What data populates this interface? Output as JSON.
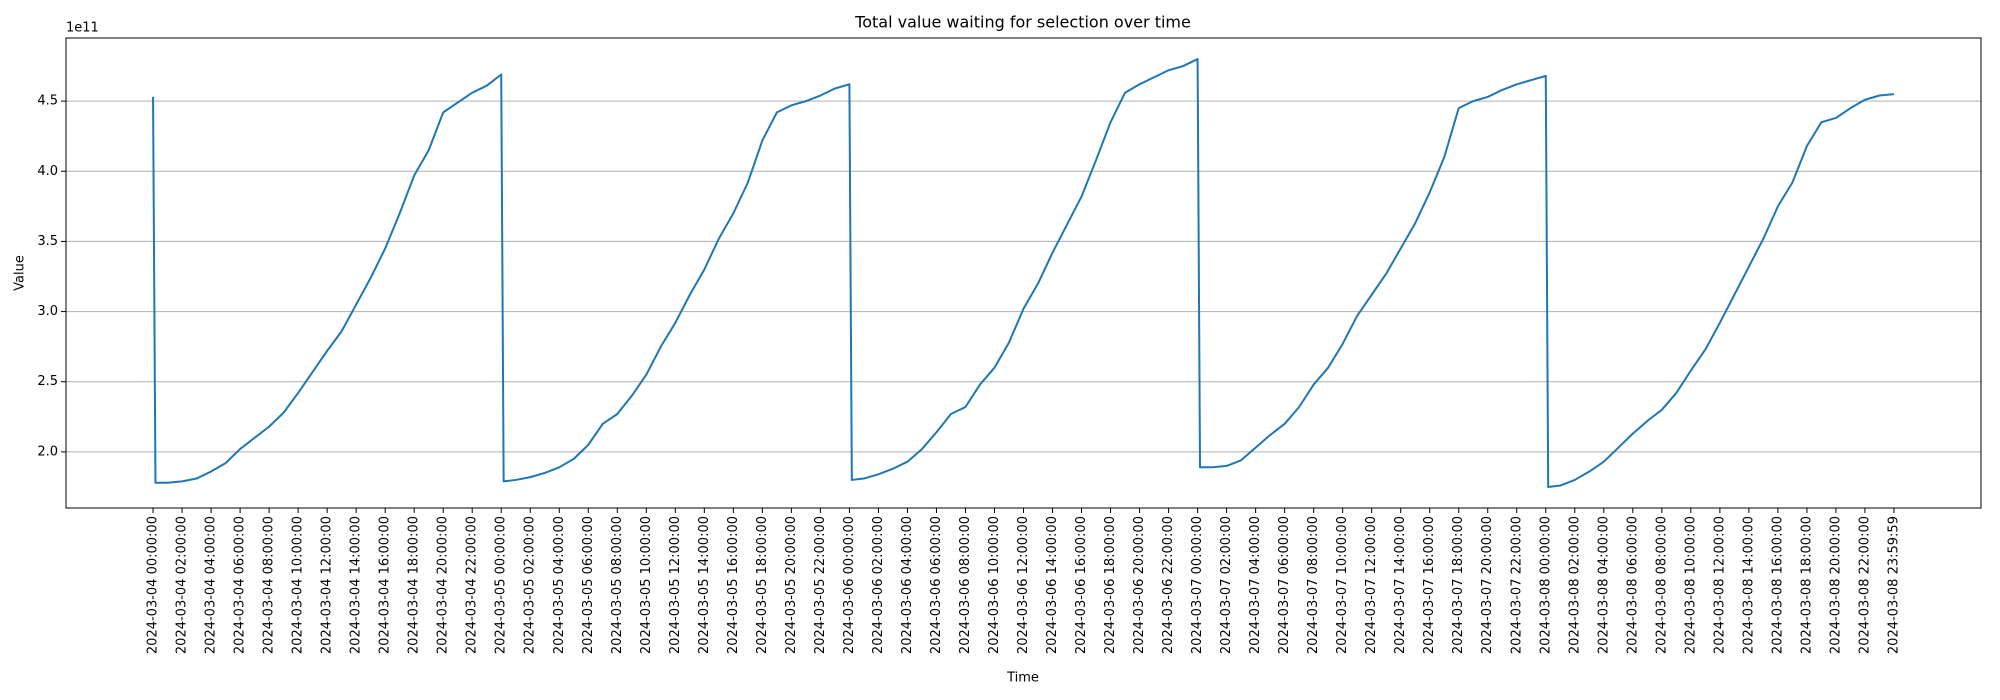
{
  "chart_data": {
    "type": "line",
    "title": "Total value waiting for selection over time",
    "xlabel": "Time",
    "ylabel": "Value",
    "y_offset_label": "1e11",
    "x": [
      "2024-03-04 00:00:00",
      "2024-03-04 00:10:00",
      "2024-03-04 01:00:00",
      "2024-03-04 02:00:00",
      "2024-03-04 03:00:00",
      "2024-03-04 04:00:00",
      "2024-03-04 05:00:00",
      "2024-03-04 06:00:00",
      "2024-03-04 07:00:00",
      "2024-03-04 08:00:00",
      "2024-03-04 09:00:00",
      "2024-03-04 10:00:00",
      "2024-03-04 11:00:00",
      "2024-03-04 12:00:00",
      "2024-03-04 13:00:00",
      "2024-03-04 14:00:00",
      "2024-03-04 15:00:00",
      "2024-03-04 16:00:00",
      "2024-03-04 17:00:00",
      "2024-03-04 18:00:00",
      "2024-03-04 19:00:00",
      "2024-03-04 20:00:00",
      "2024-03-04 21:00:00",
      "2024-03-04 22:00:00",
      "2024-03-04 23:00:00",
      "2024-03-05 00:00:00",
      "2024-03-05 00:10:00",
      "2024-03-05 01:00:00",
      "2024-03-05 02:00:00",
      "2024-03-05 03:00:00",
      "2024-03-05 04:00:00",
      "2024-03-05 05:00:00",
      "2024-03-05 06:00:00",
      "2024-03-05 07:00:00",
      "2024-03-05 08:00:00",
      "2024-03-05 09:00:00",
      "2024-03-05 10:00:00",
      "2024-03-05 11:00:00",
      "2024-03-05 12:00:00",
      "2024-03-05 13:00:00",
      "2024-03-05 14:00:00",
      "2024-03-05 15:00:00",
      "2024-03-05 16:00:00",
      "2024-03-05 17:00:00",
      "2024-03-05 18:00:00",
      "2024-03-05 19:00:00",
      "2024-03-05 20:00:00",
      "2024-03-05 21:00:00",
      "2024-03-05 22:00:00",
      "2024-03-05 23:00:00",
      "2024-03-06 00:00:00",
      "2024-03-06 00:10:00",
      "2024-03-06 01:00:00",
      "2024-03-06 02:00:00",
      "2024-03-06 03:00:00",
      "2024-03-06 04:00:00",
      "2024-03-06 05:00:00",
      "2024-03-06 06:00:00",
      "2024-03-06 07:00:00",
      "2024-03-06 08:00:00",
      "2024-03-06 09:00:00",
      "2024-03-06 10:00:00",
      "2024-03-06 11:00:00",
      "2024-03-06 12:00:00",
      "2024-03-06 13:00:00",
      "2024-03-06 14:00:00",
      "2024-03-06 15:00:00",
      "2024-03-06 16:00:00",
      "2024-03-06 17:00:00",
      "2024-03-06 18:00:00",
      "2024-03-06 19:00:00",
      "2024-03-06 20:00:00",
      "2024-03-06 21:00:00",
      "2024-03-06 22:00:00",
      "2024-03-06 23:00:00",
      "2024-03-07 00:00:00",
      "2024-03-07 00:10:00",
      "2024-03-07 01:00:00",
      "2024-03-07 02:00:00",
      "2024-03-07 03:00:00",
      "2024-03-07 04:00:00",
      "2024-03-07 05:00:00",
      "2024-03-07 06:00:00",
      "2024-03-07 07:00:00",
      "2024-03-07 08:00:00",
      "2024-03-07 09:00:00",
      "2024-03-07 10:00:00",
      "2024-03-07 11:00:00",
      "2024-03-07 12:00:00",
      "2024-03-07 13:00:00",
      "2024-03-07 14:00:00",
      "2024-03-07 15:00:00",
      "2024-03-07 16:00:00",
      "2024-03-07 17:00:00",
      "2024-03-07 18:00:00",
      "2024-03-07 19:00:00",
      "2024-03-07 20:00:00",
      "2024-03-07 21:00:00",
      "2024-03-07 22:00:00",
      "2024-03-07 23:00:00",
      "2024-03-08 00:00:00",
      "2024-03-08 00:10:00",
      "2024-03-08 01:00:00",
      "2024-03-08 02:00:00",
      "2024-03-08 03:00:00",
      "2024-03-08 04:00:00",
      "2024-03-08 05:00:00",
      "2024-03-08 06:00:00",
      "2024-03-08 07:00:00",
      "2024-03-08 08:00:00",
      "2024-03-08 09:00:00",
      "2024-03-08 10:00:00",
      "2024-03-08 11:00:00",
      "2024-03-08 12:00:00",
      "2024-03-08 13:00:00",
      "2024-03-08 14:00:00",
      "2024-03-08 15:00:00",
      "2024-03-08 16:00:00",
      "2024-03-08 17:00:00",
      "2024-03-08 18:00:00",
      "2024-03-08 19:00:00",
      "2024-03-08 20:00:00",
      "2024-03-08 21:00:00",
      "2024-03-08 22:00:00",
      "2024-03-08 23:00:00",
      "2024-03-08 23:59:59"
    ],
    "series": [
      {
        "name": "Total value",
        "color": "#1f77b4",
        "values": [
          4.53,
          1.78,
          1.78,
          1.79,
          1.81,
          1.86,
          1.92,
          2.02,
          2.1,
          2.18,
          2.28,
          2.42,
          2.57,
          2.72,
          2.86,
          3.05,
          3.24,
          3.45,
          3.7,
          3.97,
          4.15,
          4.42,
          4.49,
          4.56,
          4.61,
          4.69,
          1.79,
          1.8,
          1.82,
          1.85,
          1.89,
          1.95,
          2.05,
          2.2,
          2.27,
          2.4,
          2.55,
          2.75,
          2.92,
          3.12,
          3.3,
          3.52,
          3.7,
          3.92,
          4.22,
          4.42,
          4.47,
          4.5,
          4.54,
          4.59,
          4.62,
          1.8,
          1.81,
          1.84,
          1.88,
          1.93,
          2.02,
          2.14,
          2.27,
          2.32,
          2.48,
          2.6,
          2.78,
          3.02,
          3.2,
          3.42,
          3.62,
          3.82,
          4.08,
          4.35,
          4.56,
          4.62,
          4.67,
          4.72,
          4.75,
          4.8,
          1.89,
          1.89,
          1.9,
          1.94,
          2.03,
          2.12,
          2.2,
          2.32,
          2.48,
          2.6,
          2.77,
          2.97,
          3.12,
          3.27,
          3.45,
          3.63,
          3.85,
          4.1,
          4.45,
          4.5,
          4.53,
          4.58,
          4.62,
          4.65,
          4.68,
          1.75,
          1.76,
          1.8,
          1.86,
          1.93,
          2.03,
          2.13,
          2.22,
          2.3,
          2.42,
          2.58,
          2.73,
          2.92,
          3.12,
          3.32,
          3.52,
          3.75,
          3.92,
          4.18,
          4.35,
          4.38,
          4.45,
          4.51,
          4.54,
          4.55
        ]
      }
    ],
    "xlim": [
      "2024-03-03 18:00:00",
      "2024-03-09 06:00:00"
    ],
    "xticks": [
      "2024-03-04 00:00:00",
      "2024-03-04 02:00:00",
      "2024-03-04 04:00:00",
      "2024-03-04 06:00:00",
      "2024-03-04 08:00:00",
      "2024-03-04 10:00:00",
      "2024-03-04 12:00:00",
      "2024-03-04 14:00:00",
      "2024-03-04 16:00:00",
      "2024-03-04 18:00:00",
      "2024-03-04 20:00:00",
      "2024-03-04 22:00:00",
      "2024-03-05 00:00:00",
      "2024-03-05 02:00:00",
      "2024-03-05 04:00:00",
      "2024-03-05 06:00:00",
      "2024-03-05 08:00:00",
      "2024-03-05 10:00:00",
      "2024-03-05 12:00:00",
      "2024-03-05 14:00:00",
      "2024-03-05 16:00:00",
      "2024-03-05 18:00:00",
      "2024-03-05 20:00:00",
      "2024-03-05 22:00:00",
      "2024-03-06 00:00:00",
      "2024-03-06 02:00:00",
      "2024-03-06 04:00:00",
      "2024-03-06 06:00:00",
      "2024-03-06 08:00:00",
      "2024-03-06 10:00:00",
      "2024-03-06 12:00:00",
      "2024-03-06 14:00:00",
      "2024-03-06 16:00:00",
      "2024-03-06 18:00:00",
      "2024-03-06 20:00:00",
      "2024-03-06 22:00:00",
      "2024-03-07 00:00:00",
      "2024-03-07 02:00:00",
      "2024-03-07 04:00:00",
      "2024-03-07 06:00:00",
      "2024-03-07 08:00:00",
      "2024-03-07 10:00:00",
      "2024-03-07 12:00:00",
      "2024-03-07 14:00:00",
      "2024-03-07 16:00:00",
      "2024-03-07 18:00:00",
      "2024-03-07 20:00:00",
      "2024-03-07 22:00:00",
      "2024-03-08 00:00:00",
      "2024-03-08 02:00:00",
      "2024-03-08 04:00:00",
      "2024-03-08 06:00:00",
      "2024-03-08 08:00:00",
      "2024-03-08 10:00:00",
      "2024-03-08 12:00:00",
      "2024-03-08 14:00:00",
      "2024-03-08 16:00:00",
      "2024-03-08 18:00:00",
      "2024-03-08 20:00:00",
      "2024-03-08 22:00:00",
      "2024-03-08 23:59:59"
    ],
    "ylim": [
      1.6,
      4.95
    ],
    "yticks": [
      {
        "value": 2,
        "label": "2.0"
      },
      {
        "value": 2.5,
        "label": "2.5"
      },
      {
        "value": 3,
        "label": "3.0"
      },
      {
        "value": 3.5,
        "label": "3.5"
      },
      {
        "value": 4,
        "label": "4.0"
      },
      {
        "value": 4.5,
        "label": "4.5"
      }
    ],
    "grid": "y"
  }
}
